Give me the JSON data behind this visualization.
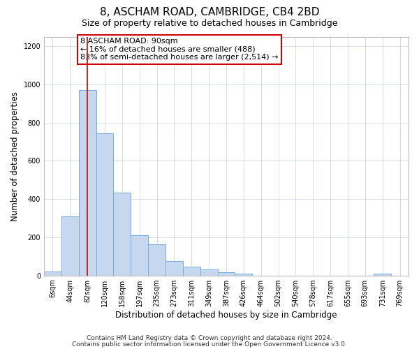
{
  "title": "8, ASCHAM ROAD, CAMBRIDGE, CB4 2BD",
  "subtitle": "Size of property relative to detached houses in Cambridge",
  "xlabel": "Distribution of detached houses by size in Cambridge",
  "ylabel": "Number of detached properties",
  "bin_labels": [
    "6sqm",
    "44sqm",
    "82sqm",
    "120sqm",
    "158sqm",
    "197sqm",
    "235sqm",
    "273sqm",
    "311sqm",
    "349sqm",
    "387sqm",
    "426sqm",
    "464sqm",
    "502sqm",
    "540sqm",
    "578sqm",
    "617sqm",
    "655sqm",
    "693sqm",
    "731sqm",
    "769sqm"
  ],
  "bar_heights": [
    20,
    310,
    970,
    745,
    435,
    210,
    165,
    75,
    48,
    33,
    18,
    10,
    0,
    0,
    0,
    0,
    0,
    0,
    0,
    10,
    0
  ],
  "bar_color": "#c5d8f0",
  "bar_edge_color": "#7aabdb",
  "vline_x_index": 2,
  "vline_color": "#cc0000",
  "annotation_line1": "8 ASCHAM ROAD: 90sqm",
  "annotation_line2": "← 16% of detached houses are smaller (488)",
  "annotation_line3": "83% of semi-detached houses are larger (2,514) →",
  "annotation_box_edge_color": "#cc0000",
  "ylim": [
    0,
    1250
  ],
  "yticks": [
    0,
    200,
    400,
    600,
    800,
    1000,
    1200
  ],
  "footnote1": "Contains HM Land Registry data © Crown copyright and database right 2024.",
  "footnote2": "Contains public sector information licensed under the Open Government Licence v3.0.",
  "background_color": "#ffffff",
  "grid_color": "#d0d8e8",
  "title_fontsize": 11,
  "subtitle_fontsize": 9,
  "axis_label_fontsize": 8.5,
  "tick_fontsize": 7,
  "annotation_fontsize": 8,
  "footnote_fontsize": 6.5
}
